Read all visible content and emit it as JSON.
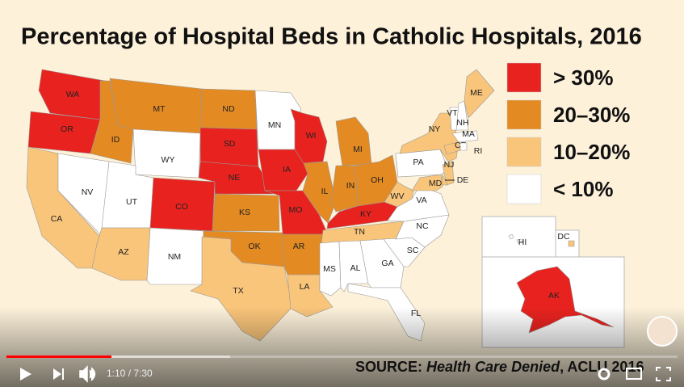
{
  "title": "Percentage of Hospital Beds in Catholic Hospitals, 2016",
  "legend": [
    {
      "label": "> 30%",
      "color": "#e8231f"
    },
    {
      "label": "20–30%",
      "color": "#e38a22"
    },
    {
      "label": "10–20%",
      "color": "#f9c57a"
    },
    {
      "label": "< 10%",
      "color": "#ffffff"
    }
  ],
  "states": [
    {
      "label": "WA",
      "bin": 0
    },
    {
      "label": "OR",
      "bin": 0
    },
    {
      "label": "CA",
      "bin": 2
    },
    {
      "label": "NV",
      "bin": 3
    },
    {
      "label": "ID",
      "bin": 1
    },
    {
      "label": "MT",
      "bin": 1
    },
    {
      "label": "WY",
      "bin": 3
    },
    {
      "label": "UT",
      "bin": 3
    },
    {
      "label": "AZ",
      "bin": 2
    },
    {
      "label": "CO",
      "bin": 0
    },
    {
      "label": "NM",
      "bin": 3
    },
    {
      "label": "ND",
      "bin": 1
    },
    {
      "label": "SD",
      "bin": 0
    },
    {
      "label": "NE",
      "bin": 0
    },
    {
      "label": "KS",
      "bin": 1
    },
    {
      "label": "OK",
      "bin": 1
    },
    {
      "label": "TX",
      "bin": 2
    },
    {
      "label": "MN",
      "bin": 3
    },
    {
      "label": "IA",
      "bin": 0
    },
    {
      "label": "MO",
      "bin": 0
    },
    {
      "label": "AR",
      "bin": 1
    },
    {
      "label": "LA",
      "bin": 2
    },
    {
      "label": "WI",
      "bin": 0
    },
    {
      "label": "IL",
      "bin": 1
    },
    {
      "label": "MI",
      "bin": 1
    },
    {
      "label": "IN",
      "bin": 1
    },
    {
      "label": "OH",
      "bin": 1
    },
    {
      "label": "KY",
      "bin": 0
    },
    {
      "label": "TN",
      "bin": 2
    },
    {
      "label": "MS",
      "bin": 3
    },
    {
      "label": "AL",
      "bin": 3
    },
    {
      "label": "GA",
      "bin": 3
    },
    {
      "label": "FL",
      "bin": 3
    },
    {
      "label": "SC",
      "bin": 3
    },
    {
      "label": "NC",
      "bin": 3
    },
    {
      "label": "VA",
      "bin": 3
    },
    {
      "label": "WV",
      "bin": 2
    },
    {
      "label": "PA",
      "bin": 3
    },
    {
      "label": "NY",
      "bin": 2
    },
    {
      "label": "NJ",
      "bin": 2
    },
    {
      "label": "DE",
      "bin": 2
    },
    {
      "label": "MD",
      "bin": 2
    },
    {
      "label": "CT",
      "bin": 2
    },
    {
      "label": "RI",
      "bin": 3
    },
    {
      "label": "MA",
      "bin": 3
    },
    {
      "label": "VT",
      "bin": 3
    },
    {
      "label": "NH",
      "bin": 3
    },
    {
      "label": "ME",
      "bin": 2
    },
    {
      "label": "HI",
      "bin": 3
    },
    {
      "label": "DC",
      "bin": 2
    },
    {
      "label": "AK",
      "bin": 0
    }
  ],
  "source": {
    "prefix": "SOURCE:",
    "title": "Health Care Denied",
    "suffix": ", ACLU 2016"
  },
  "player": {
    "time": "1:10 / 7:30"
  }
}
